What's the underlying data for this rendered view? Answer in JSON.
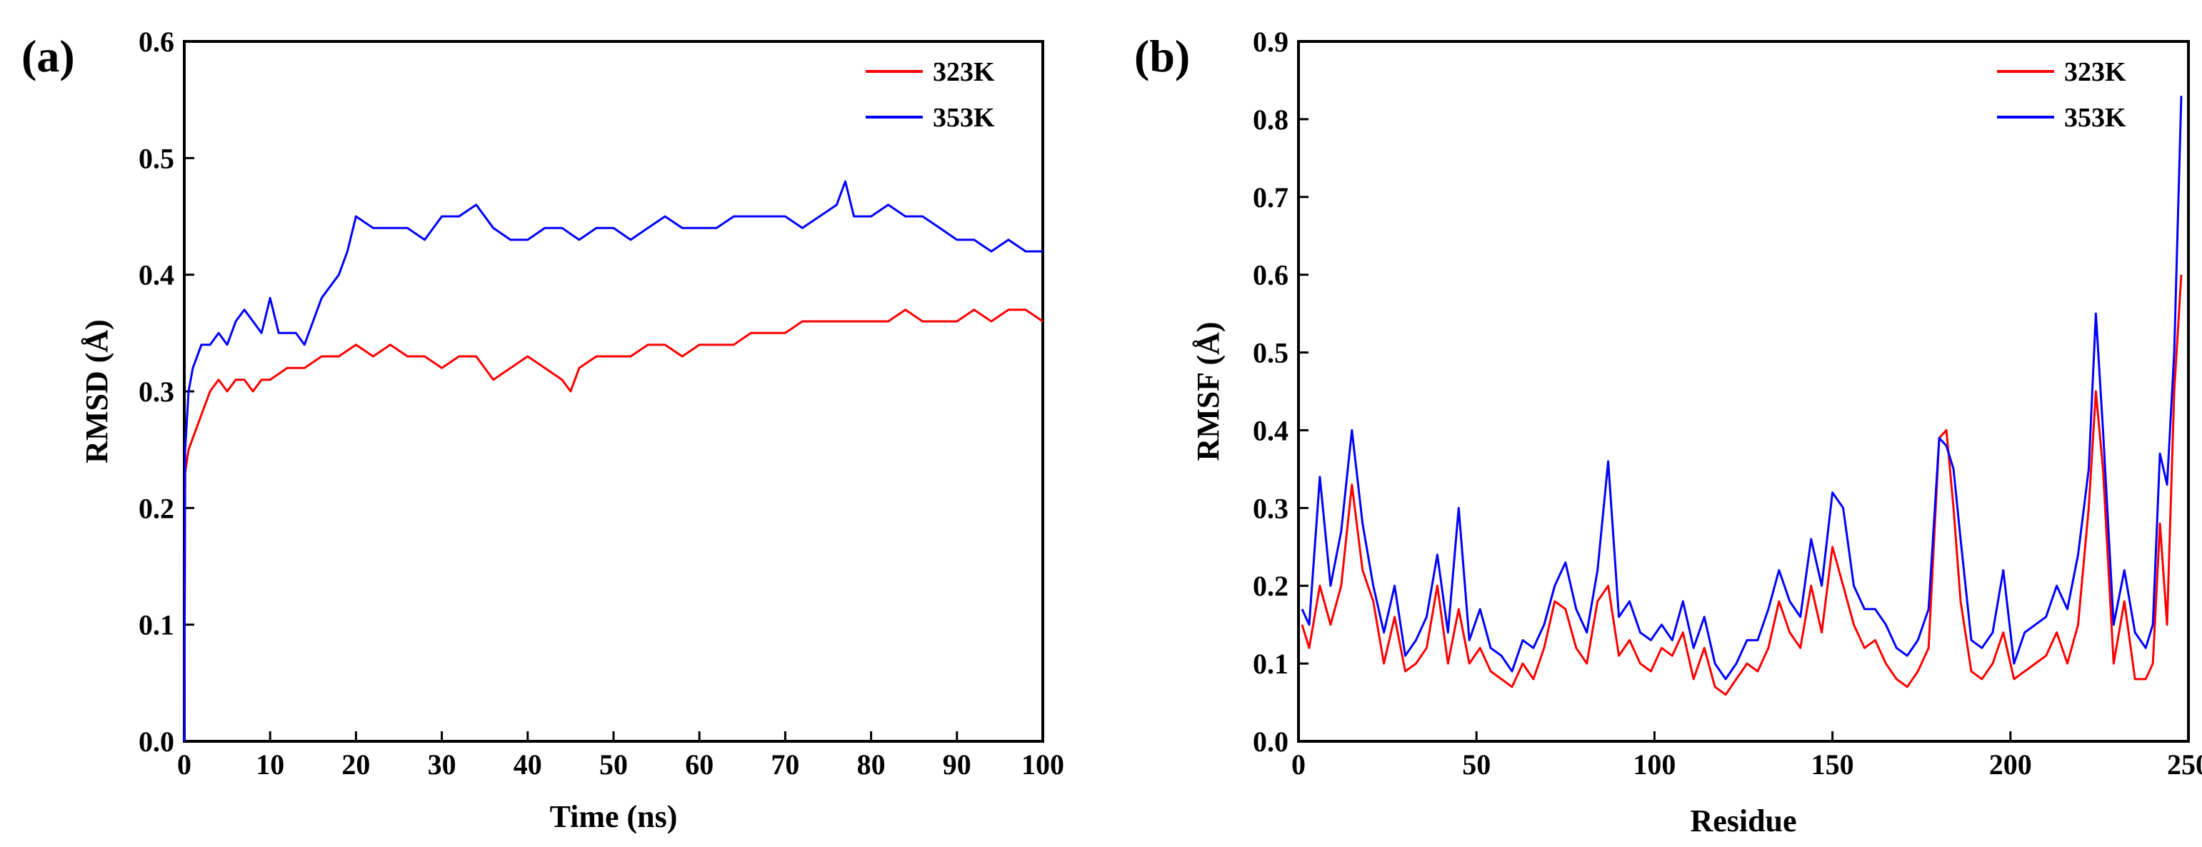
{
  "chart_data": [
    {
      "panel_label": "(a)",
      "type": "line",
      "xlabel": "Time (ns)",
      "ylabel": "RMSD (Å)",
      "xlim": [
        0,
        100
      ],
      "ylim": [
        0,
        0.6
      ],
      "xticks": [
        0,
        10,
        20,
        30,
        40,
        50,
        60,
        70,
        80,
        90,
        100
      ],
      "yticks": [
        0.0,
        0.1,
        0.2,
        0.3,
        0.4,
        0.5,
        0.6
      ],
      "xtick_labels": [
        "0",
        "10",
        "20",
        "30",
        "40",
        "50",
        "60",
        "70",
        "80",
        "90",
        "100"
      ],
      "ytick_labels": [
        "0.0",
        "0.1",
        "0.2",
        "0.3",
        "0.4",
        "0.5",
        "0.6"
      ],
      "legend_position": "top-right",
      "series": [
        {
          "name": "323K",
          "color": "#ff0000",
          "x": [
            0,
            0.1,
            0.5,
            1,
            2,
            3,
            4,
            5,
            6,
            7,
            8,
            9,
            10,
            12,
            14,
            16,
            18,
            20,
            22,
            24,
            26,
            28,
            30,
            32,
            34,
            36,
            38,
            40,
            42,
            44,
            45,
            46,
            48,
            50,
            52,
            54,
            56,
            58,
            60,
            62,
            64,
            66,
            68,
            70,
            72,
            74,
            76,
            78,
            80,
            82,
            84,
            86,
            88,
            90,
            92,
            94,
            96,
            98,
            100
          ],
          "values": [
            0.0,
            0.23,
            0.25,
            0.26,
            0.28,
            0.3,
            0.31,
            0.3,
            0.31,
            0.31,
            0.3,
            0.31,
            0.31,
            0.32,
            0.32,
            0.33,
            0.33,
            0.34,
            0.33,
            0.34,
            0.33,
            0.33,
            0.32,
            0.33,
            0.33,
            0.31,
            0.32,
            0.33,
            0.32,
            0.31,
            0.3,
            0.32,
            0.33,
            0.33,
            0.33,
            0.34,
            0.34,
            0.33,
            0.34,
            0.34,
            0.34,
            0.35,
            0.35,
            0.35,
            0.36,
            0.36,
            0.36,
            0.36,
            0.36,
            0.36,
            0.37,
            0.36,
            0.36,
            0.36,
            0.37,
            0.36,
            0.37,
            0.37,
            0.36
          ]
        },
        {
          "name": "353K",
          "color": "#0000ff",
          "x": [
            0,
            0.1,
            0.5,
            1,
            2,
            3,
            4,
            5,
            6,
            7,
            8,
            9,
            10,
            11,
            12,
            13,
            14,
            15,
            16,
            17,
            18,
            19,
            20,
            22,
            24,
            26,
            28,
            30,
            32,
            34,
            36,
            38,
            40,
            42,
            44,
            46,
            48,
            50,
            52,
            54,
            56,
            58,
            60,
            62,
            64,
            66,
            68,
            70,
            72,
            74,
            76,
            77,
            78,
            80,
            82,
            84,
            86,
            88,
            90,
            92,
            94,
            96,
            98,
            100
          ],
          "values": [
            0.0,
            0.25,
            0.3,
            0.32,
            0.34,
            0.34,
            0.35,
            0.34,
            0.36,
            0.37,
            0.36,
            0.35,
            0.38,
            0.35,
            0.35,
            0.35,
            0.34,
            0.36,
            0.38,
            0.39,
            0.4,
            0.42,
            0.45,
            0.44,
            0.44,
            0.44,
            0.43,
            0.45,
            0.45,
            0.46,
            0.44,
            0.43,
            0.43,
            0.44,
            0.44,
            0.43,
            0.44,
            0.44,
            0.43,
            0.44,
            0.45,
            0.44,
            0.44,
            0.44,
            0.45,
            0.45,
            0.45,
            0.45,
            0.44,
            0.45,
            0.46,
            0.48,
            0.45,
            0.45,
            0.46,
            0.45,
            0.45,
            0.44,
            0.43,
            0.43,
            0.42,
            0.43,
            0.42,
            0.42
          ]
        }
      ]
    },
    {
      "panel_label": "(b)",
      "type": "line",
      "xlabel": "Residue",
      "ylabel": "RMSF (Å)",
      "xlim": [
        0,
        250
      ],
      "ylim": [
        0,
        0.9
      ],
      "xticks": [
        0,
        50,
        100,
        150,
        200,
        250
      ],
      "yticks": [
        0.0,
        0.1,
        0.2,
        0.3,
        0.4,
        0.5,
        0.6,
        0.7,
        0.8,
        0.9
      ],
      "xtick_labels": [
        "0",
        "50",
        "100",
        "150",
        "200",
        "250"
      ],
      "ytick_labels": [
        "0.0",
        "0.1",
        "0.2",
        "0.3",
        "0.4",
        "0.5",
        "0.6",
        "0.7",
        "0.8",
        "0.9"
      ],
      "legend_position": "top-right",
      "series": [
        {
          "name": "323K",
          "color": "#ff0000",
          "x": [
            1,
            3,
            6,
            9,
            12,
            15,
            18,
            21,
            24,
            27,
            30,
            33,
            36,
            39,
            42,
            45,
            48,
            51,
            54,
            57,
            60,
            63,
            66,
            69,
            72,
            75,
            78,
            81,
            84,
            87,
            90,
            93,
            96,
            99,
            102,
            105,
            108,
            111,
            114,
            117,
            120,
            123,
            126,
            129,
            132,
            135,
            138,
            141,
            144,
            147,
            150,
            153,
            156,
            159,
            162,
            165,
            168,
            171,
            174,
            177,
            180,
            182,
            184,
            186,
            189,
            192,
            195,
            198,
            201,
            204,
            207,
            210,
            213,
            216,
            219,
            222,
            224,
            226,
            229,
            232,
            235,
            238,
            240,
            242,
            244,
            246,
            248
          ],
          "values": [
            0.15,
            0.12,
            0.2,
            0.15,
            0.2,
            0.33,
            0.22,
            0.18,
            0.1,
            0.16,
            0.09,
            0.1,
            0.12,
            0.2,
            0.1,
            0.17,
            0.1,
            0.12,
            0.09,
            0.08,
            0.07,
            0.1,
            0.08,
            0.12,
            0.18,
            0.17,
            0.12,
            0.1,
            0.18,
            0.2,
            0.11,
            0.13,
            0.1,
            0.09,
            0.12,
            0.11,
            0.14,
            0.08,
            0.12,
            0.07,
            0.06,
            0.08,
            0.1,
            0.09,
            0.12,
            0.18,
            0.14,
            0.12,
            0.2,
            0.14,
            0.25,
            0.2,
            0.15,
            0.12,
            0.13,
            0.1,
            0.08,
            0.07,
            0.09,
            0.12,
            0.39,
            0.4,
            0.3,
            0.18,
            0.09,
            0.08,
            0.1,
            0.14,
            0.08,
            0.09,
            0.1,
            0.11,
            0.14,
            0.1,
            0.15,
            0.3,
            0.45,
            0.35,
            0.1,
            0.18,
            0.08,
            0.08,
            0.1,
            0.28,
            0.15,
            0.45,
            0.6
          ]
        },
        {
          "name": "353K",
          "color": "#0000ff",
          "x": [
            1,
            3,
            6,
            9,
            12,
            15,
            18,
            21,
            24,
            27,
            30,
            33,
            36,
            39,
            42,
            45,
            48,
            51,
            54,
            57,
            60,
            63,
            66,
            69,
            72,
            75,
            78,
            81,
            84,
            87,
            90,
            93,
            96,
            99,
            102,
            105,
            108,
            111,
            114,
            117,
            120,
            123,
            126,
            129,
            132,
            135,
            138,
            141,
            144,
            147,
            150,
            153,
            156,
            159,
            162,
            165,
            168,
            171,
            174,
            177,
            180,
            182,
            184,
            186,
            189,
            192,
            195,
            198,
            201,
            204,
            207,
            210,
            213,
            216,
            219,
            222,
            224,
            226,
            229,
            232,
            235,
            238,
            240,
            242,
            244,
            246,
            248
          ],
          "values": [
            0.17,
            0.15,
            0.34,
            0.2,
            0.27,
            0.4,
            0.28,
            0.2,
            0.14,
            0.2,
            0.11,
            0.13,
            0.16,
            0.24,
            0.14,
            0.3,
            0.13,
            0.17,
            0.12,
            0.11,
            0.09,
            0.13,
            0.12,
            0.15,
            0.2,
            0.23,
            0.17,
            0.14,
            0.22,
            0.36,
            0.16,
            0.18,
            0.14,
            0.13,
            0.15,
            0.13,
            0.18,
            0.12,
            0.16,
            0.1,
            0.08,
            0.1,
            0.13,
            0.13,
            0.17,
            0.22,
            0.18,
            0.16,
            0.26,
            0.2,
            0.32,
            0.3,
            0.2,
            0.17,
            0.17,
            0.15,
            0.12,
            0.11,
            0.13,
            0.17,
            0.39,
            0.38,
            0.35,
            0.26,
            0.13,
            0.12,
            0.14,
            0.22,
            0.1,
            0.14,
            0.15,
            0.16,
            0.2,
            0.17,
            0.24,
            0.35,
            0.55,
            0.4,
            0.15,
            0.22,
            0.14,
            0.12,
            0.15,
            0.37,
            0.33,
            0.5,
            0.83
          ]
        }
      ]
    }
  ]
}
